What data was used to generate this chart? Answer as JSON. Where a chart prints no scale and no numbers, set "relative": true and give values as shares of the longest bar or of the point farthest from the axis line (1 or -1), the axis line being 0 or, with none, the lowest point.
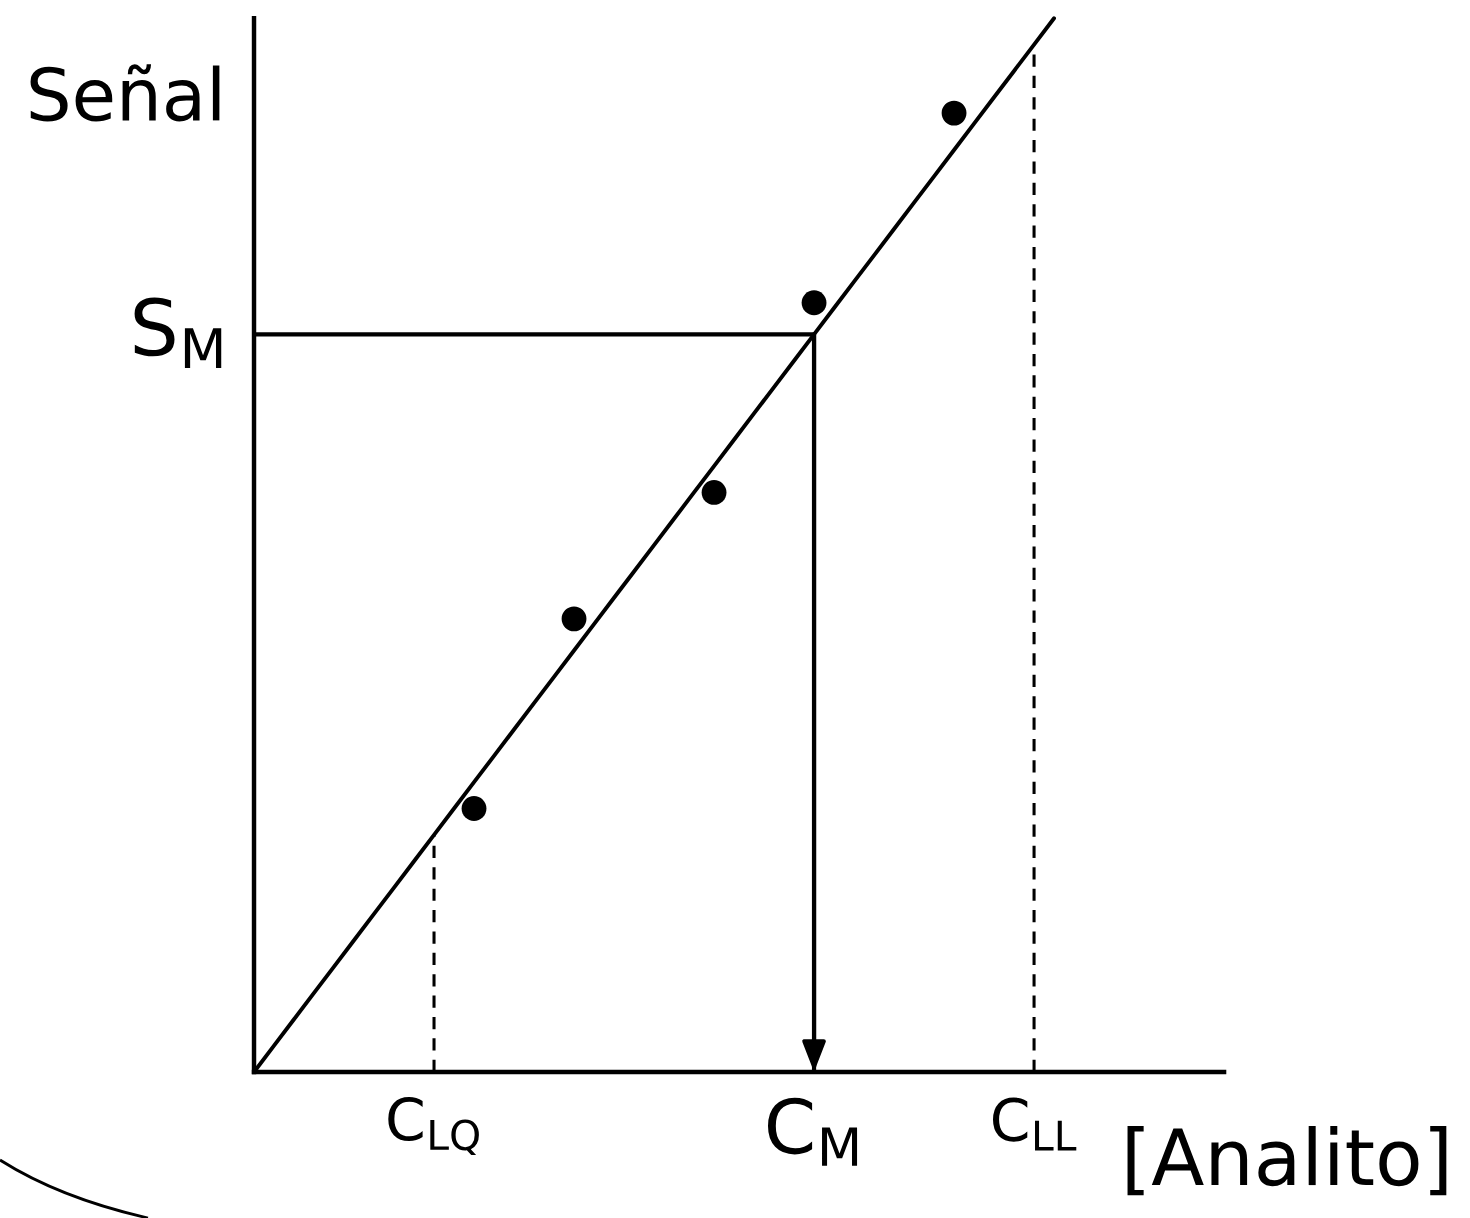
{
  "chart_data": {
    "type": "line",
    "relative": true,
    "xlabel": "[Analito]",
    "ylabel": "Señal",
    "categories": [
      null,
      null,
      null,
      null,
      null,
      null,
      null,
      null,
      null,
      "C$_{LQ}$",
      null,
      null,
      null,
      null,
      null,
      null,
      null,
      null,
      null,
      null,
      null,
      null,
      null,
      null,
      null,
      null,
      null,
      null,
      "C$_{M}$",
      null,
      null,
      null,
      null,
      null,
      null,
      null,
      null,
      null,
      null,
      "C$_{LL}$",
      null,
      null,
      null,
      null,
      null,
      null,
      null,
      null,
      null
    ],
    "series": [
      {
        "type": "scatter",
        "color": "#000000",
        "marker": "circle",
        "values": [
          null,
          null,
          null,
          null,
          null,
          null,
          null,
          null,
          null,
          null,
          null,
          0.25,
          null,
          null,
          null,
          null,
          0.43,
          null,
          null,
          null,
          null,
          null,
          null,
          0.55,
          null,
          null,
          null,
          null,
          0.73,
          null,
          null,
          null,
          null,
          null,
          null,
          0.91,
          null,
          null,
          null,
          null,
          null,
          null,
          null,
          null,
          null,
          null,
          null,
          null,
          null
        ]
      },
      {
        "color": "#000000",
        "marker": "none",
        "line_style": "solid",
        "values": [
          0,
          0.025,
          0.05,
          0.075,
          0.1,
          0.125,
          0.15,
          0.175,
          0.2,
          0.225,
          0.25,
          0.275,
          0.3,
          0.325,
          0.35,
          0.375,
          0.4,
          0.425,
          0.45,
          0.475,
          0.5,
          0.525,
          0.55,
          0.575,
          0.6,
          0.625,
          0.65,
          0.675,
          0.7,
          0.725,
          0.75,
          0.775,
          0.8,
          0.825,
          0.85,
          0.875,
          0.9,
          0.925,
          0.95,
          0.975,
          1,
          null,
          null,
          null,
          null,
          null,
          null,
          null,
          null
        ]
      }
    ],
    "ref_lines": [
      {
        "axis": "y",
        "value": 0.7,
        "label": "S$_{M}$",
        "color": "#000000",
        "line_style": "solid"
      },
      {
        "axis": "x",
        "value": "C$_{LQ}$",
        "color": "#000000",
        "line_style": "dashed"
      },
      {
        "axis": "x",
        "value": "C$_{M}$",
        "color": "#000000",
        "line_style": "solid"
      },
      {
        "axis": "x",
        "value": "C$_{LL}$",
        "color": "#000000",
        "line_style": "dashed"
      }
    ]
  }
}
